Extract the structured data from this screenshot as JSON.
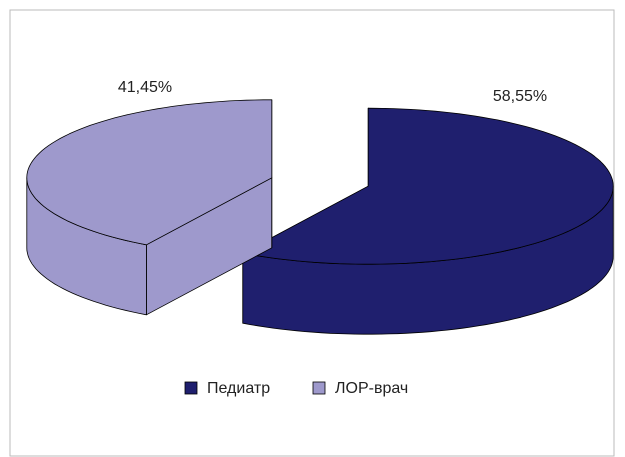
{
  "chart_data": {
    "type": "pie3d",
    "categories": [
      "Педиатр",
      "ЛОР-врач"
    ],
    "values": [
      58.55,
      41.45
    ],
    "value_labels": [
      "58,55%",
      "41,45%"
    ],
    "colors": [
      "#1f1f6e",
      "#9e99cc"
    ],
    "legend": "bottom"
  }
}
